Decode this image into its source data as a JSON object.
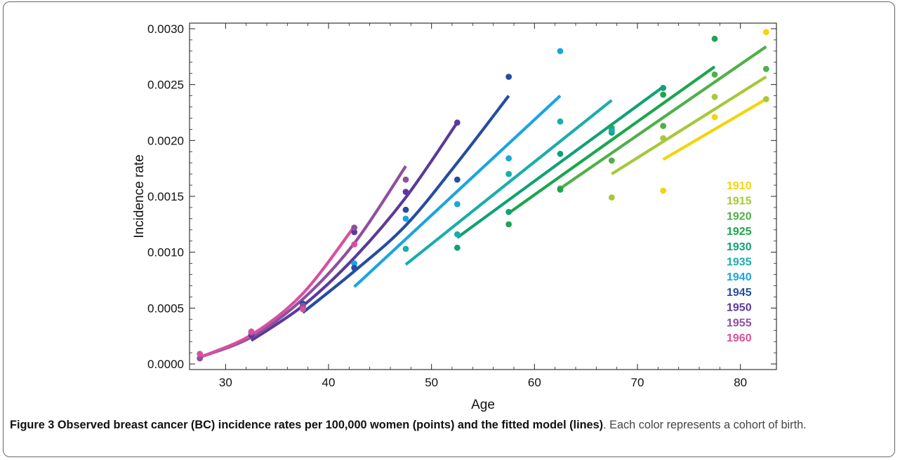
{
  "figure": {
    "caption_label": "Figure 3",
    "caption_bold": "Observed breast cancer (BC) incidence rates per 100,000 women (points) and the fitted model (lines)",
    "caption_rest": ". Each color represents a cohort of birth."
  },
  "chart_data": {
    "type": "scatter",
    "xlabel": "Age",
    "ylabel": "Incidence rate",
    "xlim": [
      26.5,
      83.5
    ],
    "ylim": [
      -5e-05,
      0.00305
    ],
    "xticks": [
      30,
      40,
      50,
      60,
      70,
      80
    ],
    "yticks": [
      0.0,
      0.0005,
      0.001,
      0.0015,
      0.002,
      0.0025,
      0.003
    ],
    "ytick_labels": [
      "0.0000",
      "0.0005",
      "0.0010",
      "0.0015",
      "0.0020",
      "0.0025",
      "0.0030"
    ],
    "legend_position": "right",
    "grid": false,
    "series": [
      {
        "name": "1910",
        "color": "#F4D40C",
        "points": [
          [
            72.5,
            0.00155
          ],
          [
            77.5,
            0.00221
          ],
          [
            82.5,
            0.00297
          ]
        ],
        "fit": [
          [
            72.5,
            0.00183
          ],
          [
            82.5,
            0.00237
          ]
        ]
      },
      {
        "name": "1915",
        "color": "#A6C83A",
        "points": [
          [
            67.5,
            0.00149
          ],
          [
            72.5,
            0.00202
          ],
          [
            77.5,
            0.00239
          ],
          [
            82.5,
            0.00237
          ]
        ],
        "fit": [
          [
            67.5,
            0.0017
          ],
          [
            82.5,
            0.00257
          ]
        ]
      },
      {
        "name": "1920",
        "color": "#4FB04A",
        "points": [
          [
            62.5,
            0.00157
          ],
          [
            67.5,
            0.00182
          ],
          [
            72.5,
            0.00213
          ],
          [
            77.5,
            0.00259
          ],
          [
            82.5,
            0.00264
          ]
        ],
        "fit": [
          [
            62.5,
            0.00157
          ],
          [
            82.5,
            0.00284
          ]
        ]
      },
      {
        "name": "1925",
        "color": "#1DA64E",
        "points": [
          [
            57.5,
            0.00125
          ],
          [
            62.5,
            0.00156
          ],
          [
            67.5,
            0.00211
          ],
          [
            72.5,
            0.00241
          ],
          [
            77.5,
            0.00291
          ]
        ],
        "fit": [
          [
            57.5,
            0.00135
          ],
          [
            77.5,
            0.00266
          ]
        ]
      },
      {
        "name": "1930",
        "color": "#10A274",
        "points": [
          [
            52.5,
            0.00104
          ],
          [
            57.5,
            0.00136
          ],
          [
            62.5,
            0.00188
          ],
          [
            67.5,
            0.00207
          ],
          [
            72.5,
            0.00247
          ]
        ],
        "fit": [
          [
            52.5,
            0.00113
          ],
          [
            72.5,
            0.00248
          ]
        ]
      },
      {
        "name": "1935",
        "color": "#19AEAA",
        "points": [
          [
            47.5,
            0.00103
          ],
          [
            52.5,
            0.00116
          ],
          [
            57.5,
            0.0017
          ],
          [
            62.5,
            0.00217
          ],
          [
            67.5,
            0.00209
          ]
        ],
        "fit": [
          [
            47.5,
            0.00089
          ],
          [
            67.5,
            0.00236
          ]
        ]
      },
      {
        "name": "1940",
        "color": "#1AA5DF",
        "points": [
          [
            42.5,
            0.0009
          ],
          [
            47.5,
            0.0013
          ],
          [
            52.5,
            0.00143
          ],
          [
            57.5,
            0.00184
          ],
          [
            62.5,
            0.0028
          ]
        ],
        "fit": [
          [
            42.5,
            0.00069
          ],
          [
            62.5,
            0.0024
          ]
        ]
      },
      {
        "name": "1945",
        "color": "#254DA0",
        "points": [
          [
            37.5,
            0.00054
          ],
          [
            42.5,
            0.00086
          ],
          [
            47.5,
            0.00138
          ],
          [
            52.5,
            0.00165
          ],
          [
            57.5,
            0.00257
          ]
        ],
        "fit": [
          [
            37.5,
            0.00046
          ],
          [
            42.5,
            0.00083
          ],
          [
            47.5,
            0.00124
          ],
          [
            52.5,
            0.0018
          ],
          [
            57.5,
            0.0024
          ]
        ]
      },
      {
        "name": "1950",
        "color": "#5A3A9A",
        "points": [
          [
            32.5,
            0.00026
          ],
          [
            37.5,
            0.00051
          ],
          [
            42.5,
            0.00118
          ],
          [
            47.5,
            0.00154
          ],
          [
            52.5,
            0.00216
          ]
        ],
        "fit": [
          [
            32.5,
            0.00021
          ],
          [
            37.5,
            0.00052
          ],
          [
            42.5,
            0.00095
          ],
          [
            47.5,
            0.00149
          ],
          [
            52.5,
            0.00216
          ]
        ]
      },
      {
        "name": "1955",
        "color": "#8E4FA0",
        "points": [
          [
            27.5,
            5e-05
          ],
          [
            32.5,
            0.00028
          ],
          [
            37.5,
            0.00052
          ],
          [
            42.5,
            0.00122
          ],
          [
            47.5,
            0.00165
          ]
        ],
        "fit": [
          [
            27.5,
            6e-05
          ],
          [
            32.5,
            0.00024
          ],
          [
            37.5,
            0.00058
          ],
          [
            42.5,
            0.00108
          ],
          [
            47.5,
            0.00177
          ]
        ]
      },
      {
        "name": "1960",
        "color": "#D8509C",
        "points": [
          [
            27.5,
            9e-05
          ],
          [
            32.5,
            0.00029
          ],
          [
            37.5,
            0.00049
          ],
          [
            42.5,
            0.00107
          ]
        ],
        "fit": [
          [
            27.5,
            6e-05
          ],
          [
            32.5,
            0.00026
          ],
          [
            37.5,
            0.00063
          ],
          [
            42.5,
            0.00123
          ]
        ]
      }
    ]
  }
}
